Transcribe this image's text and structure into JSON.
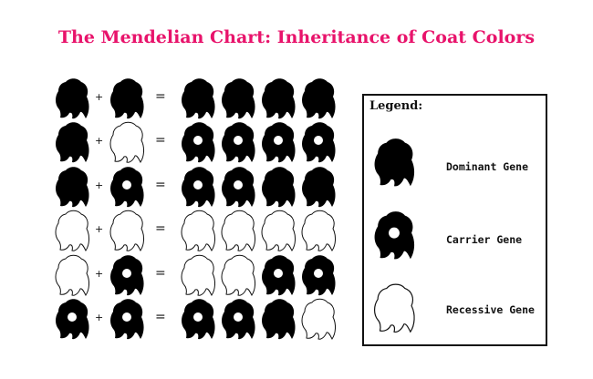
{
  "title": "The Mendelian Chart: Inheritance of Coat Colors",
  "operators": {
    "plus": "+",
    "equals": "="
  },
  "rows": [
    {
      "parents": [
        "dominant",
        "dominant"
      ],
      "offspring": [
        "dominant",
        "dominant",
        "dominant",
        "dominant"
      ]
    },
    {
      "parents": [
        "dominant",
        "recessive"
      ],
      "offspring": [
        "carrier",
        "carrier",
        "carrier",
        "carrier"
      ]
    },
    {
      "parents": [
        "dominant",
        "carrier"
      ],
      "offspring": [
        "carrier",
        "carrier",
        "dominant",
        "dominant"
      ]
    },
    {
      "parents": [
        "recessive",
        "recessive"
      ],
      "offspring": [
        "recessive",
        "recessive",
        "recessive",
        "recessive"
      ]
    },
    {
      "parents": [
        "recessive",
        "carrier"
      ],
      "offspring": [
        "recessive",
        "recessive",
        "carrier",
        "carrier"
      ]
    },
    {
      "parents": [
        "carrier",
        "carrier"
      ],
      "offspring": [
        "carrier",
        "carrier",
        "dominant",
        "recessive"
      ]
    }
  ],
  "legend": {
    "title": "Legend:",
    "items": [
      {
        "type": "dominant",
        "label": "Dominant Gene"
      },
      {
        "type": "carrier",
        "label": "Carrier Gene"
      },
      {
        "type": "recessive",
        "label": "Recessive Gene"
      }
    ]
  },
  "colors": {
    "title": "#e8136b",
    "fill": "#000000",
    "outline": "#111111"
  },
  "icons": {
    "dominant": "black-blob-icon",
    "carrier": "black-blob-with-hole-icon",
    "recessive": "outline-blob-icon"
  }
}
